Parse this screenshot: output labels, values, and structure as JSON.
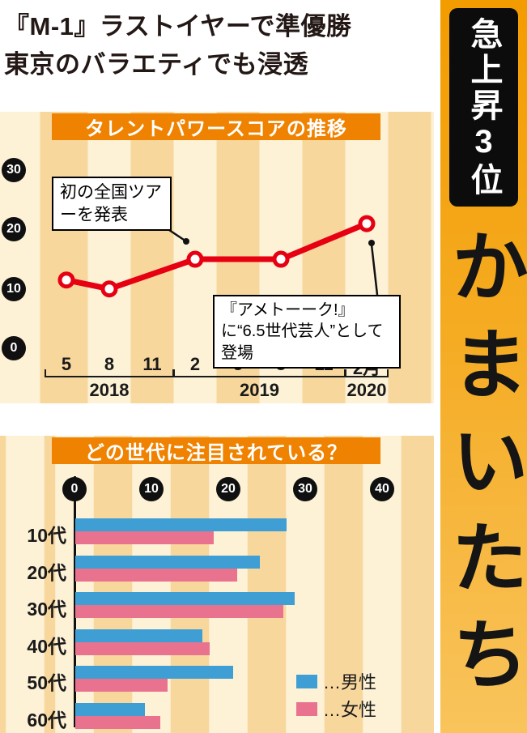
{
  "page": {
    "title_lines": [
      "『M-1』ラストイヤーで準優勝",
      "東京のバラエティでも浸透"
    ]
  },
  "side_banner": {
    "rank_badge": "急上昇3位",
    "name": "かまいたち"
  },
  "chart_data": [
    {
      "type": "line",
      "title": "タレントパワースコアの推移",
      "x_tick_labels": [
        "5",
        "8",
        "11",
        "2",
        "5",
        "8",
        "11",
        "2月"
      ],
      "year_groups": [
        {
          "label": "2018",
          "from": 0,
          "to": 2
        },
        {
          "label": "2019",
          "from": 3,
          "to": 6
        },
        {
          "label": "2020",
          "from": 7,
          "to": 7
        }
      ],
      "y_ticks": [
        30,
        20,
        10,
        0
      ],
      "ylim": [
        0,
        30
      ],
      "grid": false,
      "series": [
        {
          "name": "タレントパワースコア",
          "color": "#e60012",
          "points": [
            {
              "x_index": 0,
              "month": "5",
              "year": "2018",
              "value": 11.5
            },
            {
              "x_index": 1,
              "month": "8",
              "year": "2018",
              "value": 10
            },
            {
              "x_index": 3,
              "month": "2",
              "year": "2019",
              "value": 15
            },
            {
              "x_index": 5,
              "month": "8",
              "year": "2019",
              "value": 15
            },
            {
              "x_index": 7,
              "month": "2",
              "year": "2020",
              "value": 21
            }
          ]
        }
      ],
      "annotations": [
        {
          "text": "初の全国ツアーを発表"
        },
        {
          "text": "『アメトーーク!』に“6.5世代芸人”として登場"
        }
      ]
    },
    {
      "type": "bar",
      "title": "どの世代に注目されている？",
      "categories": [
        "10代",
        "20代",
        "30代",
        "40代",
        "50代",
        "60代"
      ],
      "x_ticks": [
        0,
        10,
        20,
        30,
        40
      ],
      "xlim": [
        0,
        40
      ],
      "orientation": "horizontal",
      "legend_position": "bottom-right",
      "series": [
        {
          "name": "male",
          "legend_label": "…男性",
          "color": "#3f9fd5",
          "values": [
            27.5,
            24,
            28.5,
            16.5,
            20.5,
            9
          ]
        },
        {
          "name": "female",
          "legend_label": "…女性",
          "color": "#e9738f",
          "values": [
            18,
            21,
            27,
            17.5,
            12,
            11
          ]
        }
      ]
    }
  ]
}
